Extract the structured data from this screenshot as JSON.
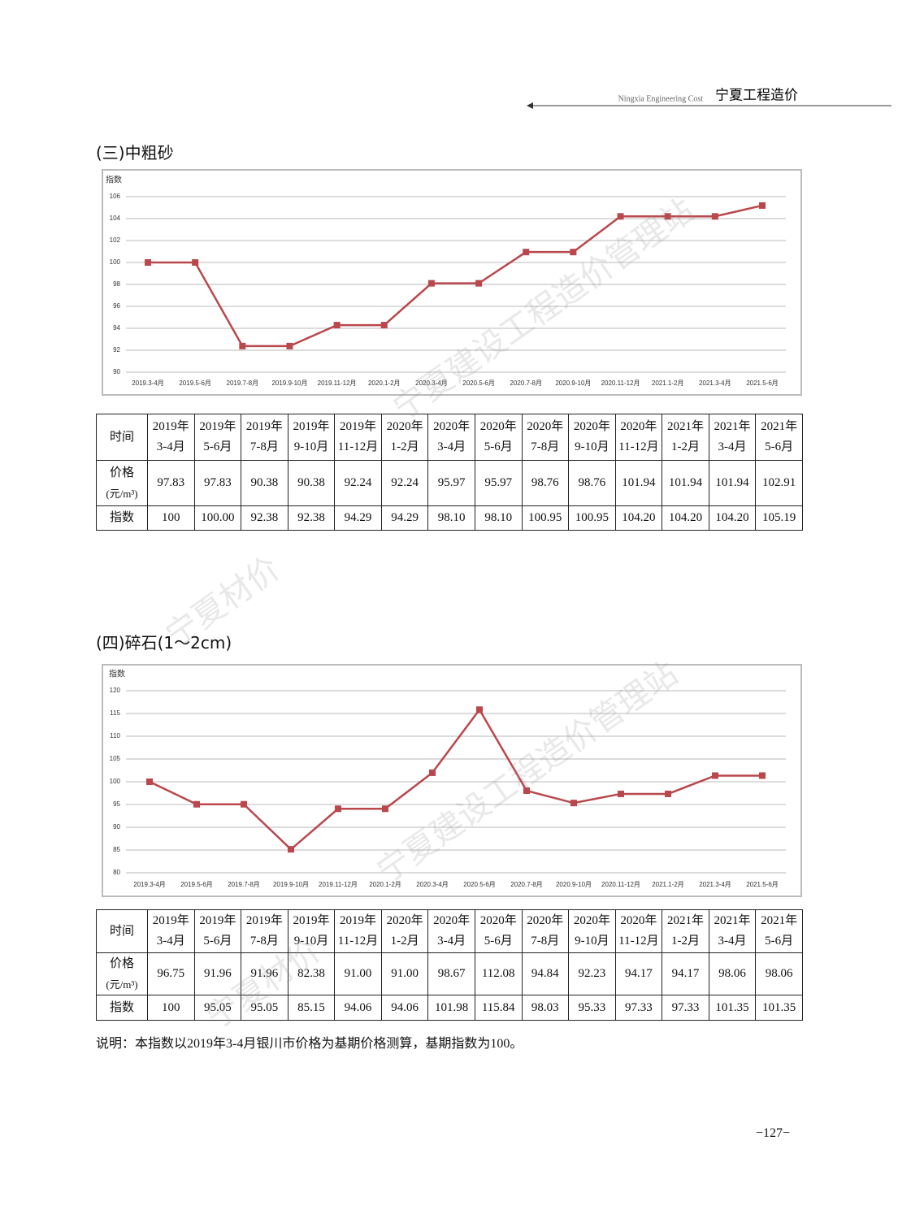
{
  "header": {
    "en": "Ningxia Engineering Cost",
    "cn": "宁夏工程造价"
  },
  "sections": [
    {
      "title": "(三)中粗砂"
    },
    {
      "title": "(四)碎石(1～2cm)"
    }
  ],
  "chart_data": [
    {
      "type": "line",
      "y_label": "指数",
      "color": "#b9474c",
      "grid": true,
      "categories": [
        "2019.3-4月",
        "2019.5-6月",
        "2019.7-8月",
        "2019.9-10月",
        "2019.11-12月",
        "2020.1-2月",
        "2020.3-4月",
        "2020.5-6月",
        "2020.7-8月",
        "2020.9-10月",
        "2020.11-12月",
        "2021.1-2月",
        "2021.3-4月",
        "2021.5-6月"
      ],
      "values": [
        100,
        100,
        92.38,
        92.38,
        94.29,
        94.29,
        98.1,
        98.1,
        100.95,
        100.95,
        104.2,
        104.2,
        104.2,
        105.19
      ],
      "ylim": [
        90,
        106
      ],
      "yticks": [
        90,
        92,
        94,
        96,
        98,
        100,
        102,
        104,
        106
      ]
    },
    {
      "type": "line",
      "y_label": "指数",
      "color": "#b9474c",
      "grid": true,
      "categories": [
        "2019.3-4月",
        "2019.5-6月",
        "2019.7-8月",
        "2019.9-10月",
        "2019.11-12月",
        "2020.1-2月",
        "2020.3-4月",
        "2020.5-6月",
        "2020.7-8月",
        "2020.9-10月",
        "2020.11-12月",
        "2021.1-2月",
        "2021.3-4月",
        "2021.5-6月"
      ],
      "values": [
        100,
        95.05,
        95.05,
        85.15,
        94.06,
        94.06,
        101.98,
        115.84,
        98.03,
        95.33,
        97.33,
        97.33,
        101.35,
        101.35
      ],
      "ylim": [
        80,
        120
      ],
      "yticks": [
        80,
        85,
        90,
        95,
        100,
        105,
        110,
        115,
        120
      ]
    }
  ],
  "tables": [
    {
      "header_label": "时间",
      "columns": [
        [
          "2019年",
          "3-4月"
        ],
        [
          "2019年",
          "5-6月"
        ],
        [
          "2019年",
          "7-8月"
        ],
        [
          "2019年",
          "9-10月"
        ],
        [
          "2019年",
          "11-12月"
        ],
        [
          "2020年",
          "1-2月"
        ],
        [
          "2020年",
          "3-4月"
        ],
        [
          "2020年",
          "5-6月"
        ],
        [
          "2020年",
          "7-8月"
        ],
        [
          "2020年",
          "9-10月"
        ],
        [
          "2020年",
          "11-12月"
        ],
        [
          "2021年",
          "1-2月"
        ],
        [
          "2021年",
          "3-4月"
        ],
        [
          "2021年",
          "5-6月"
        ]
      ],
      "rows": [
        {
          "label": [
            "价格",
            "(元/m³)"
          ],
          "cells": [
            "97.83",
            "97.83",
            "90.38",
            "90.38",
            "92.24",
            "92.24",
            "95.97",
            "95.97",
            "98.76",
            "98.76",
            "101.94",
            "101.94",
            "101.94",
            "102.91"
          ]
        },
        {
          "label": [
            "指数"
          ],
          "cells": [
            "100",
            "100.00",
            "92.38",
            "92.38",
            "94.29",
            "94.29",
            "98.10",
            "98.10",
            "100.95",
            "100.95",
            "104.20",
            "104.20",
            "104.20",
            "105.19"
          ]
        }
      ]
    },
    {
      "header_label": "时间",
      "columns": [
        [
          "2019年",
          "3-4月"
        ],
        [
          "2019年",
          "5-6月"
        ],
        [
          "2019年",
          "7-8月"
        ],
        [
          "2019年",
          "9-10月"
        ],
        [
          "2019年",
          "11-12月"
        ],
        [
          "2020年",
          "1-2月"
        ],
        [
          "2020年",
          "3-4月"
        ],
        [
          "2020年",
          "5-6月"
        ],
        [
          "2020年",
          "7-8月"
        ],
        [
          "2020年",
          "9-10月"
        ],
        [
          "2020年",
          "11-12月"
        ],
        [
          "2021年",
          "1-2月"
        ],
        [
          "2021年",
          "3-4月"
        ],
        [
          "2021年",
          "5-6月"
        ]
      ],
      "rows": [
        {
          "label": [
            "价格",
            "(元/m³)"
          ],
          "cells": [
            "96.75",
            "91.96",
            "91.96",
            "82.38",
            "91.00",
            "91.00",
            "98.67",
            "112.08",
            "94.84",
            "92.23",
            "94.17",
            "94.17",
            "98.06",
            "98.06"
          ]
        },
        {
          "label": [
            "指数"
          ],
          "cells": [
            "100",
            "95.05",
            "95.05",
            "85.15",
            "94.06",
            "94.06",
            "101.98",
            "115.84",
            "98.03",
            "95.33",
            "97.33",
            "97.33",
            "101.35",
            "101.35"
          ]
        }
      ]
    }
  ],
  "note": "说明：本指数以2019年3-4月银川市价格为基期价格测算，基期指数为100。",
  "page_number": "−127−",
  "watermarks": [
    "宁夏建设工程造价管理站",
    "宁夏材价"
  ]
}
